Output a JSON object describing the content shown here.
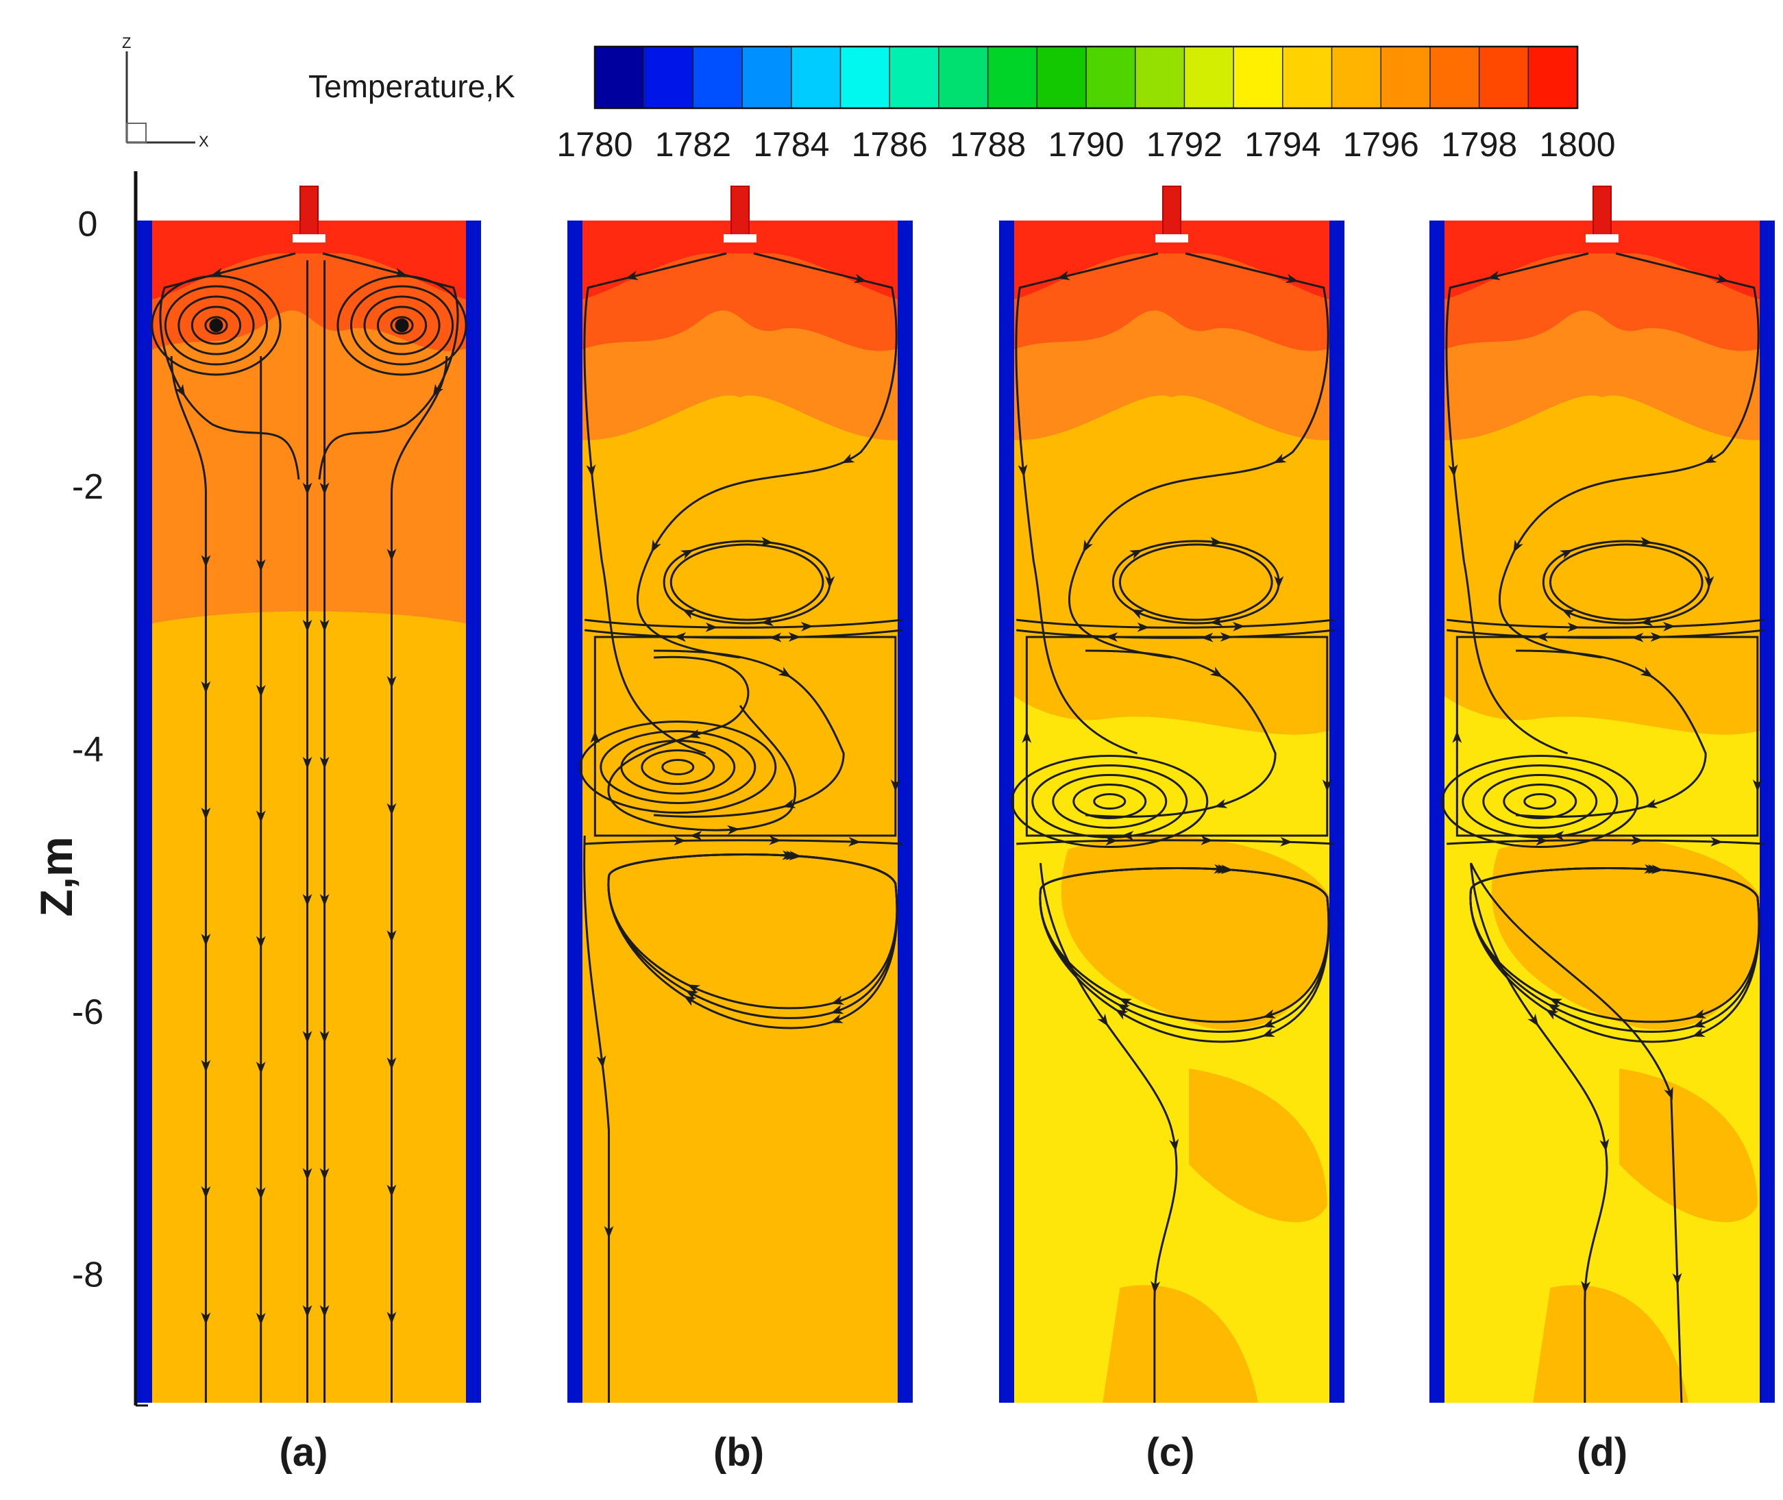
{
  "legend": {
    "title": "Temperature,K",
    "ticks": [
      "1780",
      "1782",
      "1784",
      "1786",
      "1788",
      "1790",
      "1792",
      "1794",
      "1796",
      "1798",
      "1800"
    ],
    "range": [
      1780,
      1800
    ],
    "colors": [
      "#00009e",
      "#0016e8",
      "#0050ff",
      "#0090ff",
      "#00ccff",
      "#00f8ee",
      "#00f0b0",
      "#00e070",
      "#00d428",
      "#14c800",
      "#50d400",
      "#96e000",
      "#d4ee00",
      "#fff000",
      "#ffd200",
      "#ffb400",
      "#ff9200",
      "#ff6e00",
      "#ff4800",
      "#ff1a00"
    ]
  },
  "triad": {
    "z": "Z",
    "x": "X"
  },
  "axis": {
    "title": "Z,m",
    "ticks": [
      "0",
      "-2",
      "-4",
      "-6",
      "-8"
    ],
    "range": [
      -9,
      0.4
    ]
  },
  "panels": [
    {
      "label": "(a)"
    },
    {
      "label": "(b)"
    },
    {
      "label": "(c)"
    },
    {
      "label": "(d)"
    }
  ],
  "colors": {
    "hot": "#ff2a10",
    "warm1": "#ff5a14",
    "warm2": "#ff8a18",
    "mid": "#ffba00",
    "cool": "#ffe60a",
    "wall": "#0011cc",
    "streamline": "#1c1c1c"
  }
}
